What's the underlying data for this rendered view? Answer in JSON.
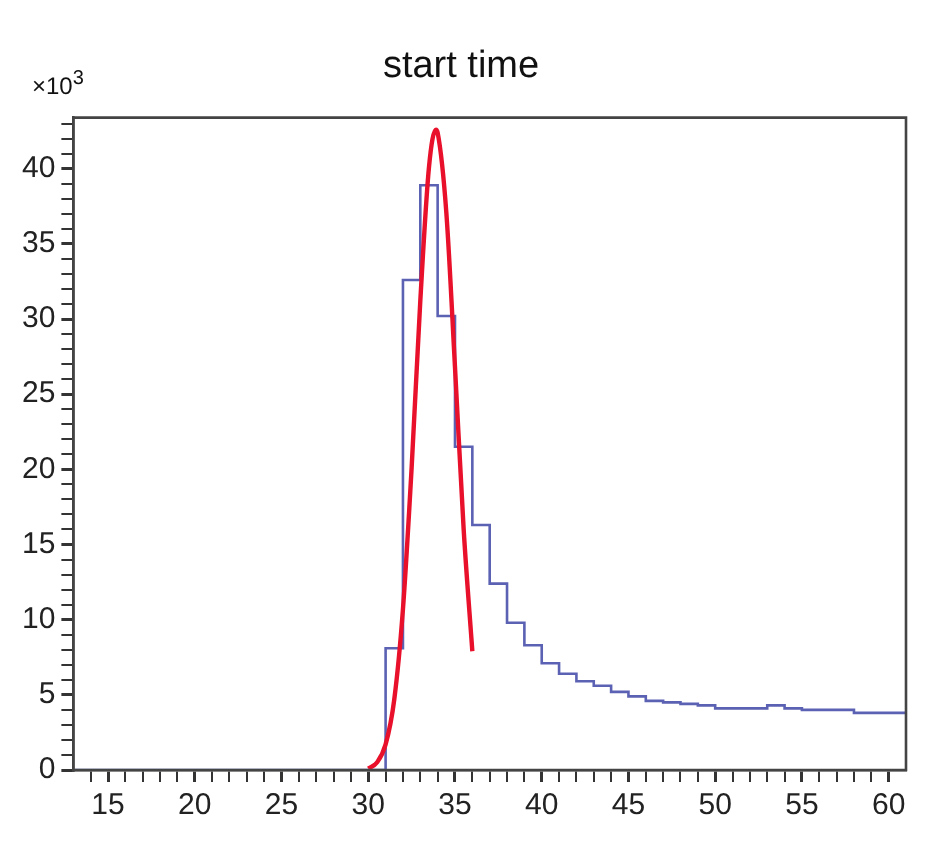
{
  "chart_data": {
    "type": "histogram",
    "title": "start time",
    "annotations": [
      "×10$^{3}$"
    ],
    "bins": [
      13,
      14,
      15,
      16,
      17,
      18,
      19,
      20,
      21,
      22,
      23,
      24,
      25,
      26,
      27,
      28,
      29,
      30,
      31,
      32,
      33,
      34,
      35,
      36,
      37,
      38,
      39,
      40,
      41,
      42,
      43,
      44,
      45,
      46,
      47,
      48,
      49,
      50,
      51,
      52,
      53,
      54,
      55,
      56,
      57,
      58,
      59,
      60,
      61
    ],
    "values": [
      0,
      0,
      0,
      0,
      0,
      0,
      0,
      0,
      0,
      0,
      0,
      0,
      0,
      0,
      0,
      0,
      0,
      0,
      8.1,
      32.6,
      38.9,
      30.2,
      21.5,
      16.3,
      12.4,
      9.8,
      8.3,
      7.1,
      6.4,
      5.9,
      5.6,
      5.2,
      4.9,
      4.6,
      4.5,
      4.4,
      4.3,
      4.1,
      4.1,
      4.1,
      4.3,
      4.1,
      4.0,
      4.0,
      4.0,
      3.8,
      3.8,
      3.8
    ],
    "color": "#5b61b3",
    "series": [
      {
        "type": "line",
        "color": "#e8102a",
        "x": [
          30,
          30.5,
          31,
          31.5,
          32,
          32.5,
          33,
          33.5,
          33.9,
          34,
          34.5,
          35,
          35.5,
          36
        ],
        "values": [
          0.1,
          0.5,
          1.7,
          4.7,
          10.7,
          20.1,
          31.2,
          40.1,
          42.6,
          42.4,
          37.1,
          26.8,
          16.0,
          7.9
        ]
      }
    ],
    "xlim": [
      13,
      61
    ],
    "ylim": [
      0,
      43.4
    ],
    "xticks": [
      {
        "value": 14,
        "label": null
      },
      15,
      {
        "value": 16,
        "label": null
      },
      {
        "value": 17,
        "label": null
      },
      {
        "value": 18,
        "label": null
      },
      {
        "value": 19,
        "label": null
      },
      20,
      {
        "value": 21,
        "label": null
      },
      {
        "value": 22,
        "label": null
      },
      {
        "value": 23,
        "label": null
      },
      {
        "value": 24,
        "label": null
      },
      25,
      {
        "value": 26,
        "label": null
      },
      {
        "value": 27,
        "label": null
      },
      {
        "value": 28,
        "label": null
      },
      {
        "value": 29,
        "label": null
      },
      30,
      {
        "value": 31,
        "label": null
      },
      {
        "value": 32,
        "label": null
      },
      {
        "value": 33,
        "label": null
      },
      {
        "value": 34,
        "label": null
      },
      35,
      {
        "value": 36,
        "label": null
      },
      {
        "value": 37,
        "label": null
      },
      {
        "value": 38,
        "label": null
      },
      {
        "value": 39,
        "label": null
      },
      40,
      {
        "value": 41,
        "label": null
      },
      {
        "value": 42,
        "label": null
      },
      {
        "value": 43,
        "label": null
      },
      {
        "value": 44,
        "label": null
      },
      45,
      {
        "value": 46,
        "label": null
      },
      {
        "value": 47,
        "label": null
      },
      {
        "value": 48,
        "label": null
      },
      {
        "value": 49,
        "label": null
      },
      50,
      {
        "value": 51,
        "label": null
      },
      {
        "value": 52,
        "label": null
      },
      {
        "value": 53,
        "label": null
      },
      {
        "value": 54,
        "label": null
      },
      55,
      {
        "value": 56,
        "label": null
      },
      {
        "value": 57,
        "label": null
      },
      {
        "value": 58,
        "label": null
      },
      {
        "value": 59,
        "label": null
      },
      60
    ],
    "yticks": [
      0,
      {
        "value": 1,
        "label": null
      },
      {
        "value": 2,
        "label": null
      },
      {
        "value": 3,
        "label": null
      },
      {
        "value": 4,
        "label": null
      },
      5,
      {
        "value": 6,
        "label": null
      },
      {
        "value": 7,
        "label": null
      },
      {
        "value": 8,
        "label": null
      },
      {
        "value": 9,
        "label": null
      },
      10,
      {
        "value": 11,
        "label": null
      },
      {
        "value": 12,
        "label": null
      },
      {
        "value": 13,
        "label": null
      },
      {
        "value": 14,
        "label": null
      },
      15,
      {
        "value": 16,
        "label": null
      },
      {
        "value": 17,
        "label": null
      },
      {
        "value": 18,
        "label": null
      },
      {
        "value": 19,
        "label": null
      },
      20,
      {
        "value": 21,
        "label": null
      },
      {
        "value": 22,
        "label": null
      },
      {
        "value": 23,
        "label": null
      },
      {
        "value": 24,
        "label": null
      },
      25,
      {
        "value": 26,
        "label": null
      },
      {
        "value": 27,
        "label": null
      },
      {
        "value": 28,
        "label": null
      },
      {
        "value": 29,
        "label": null
      },
      30,
      {
        "value": 31,
        "label": null
      },
      {
        "value": 32,
        "label": null
      },
      {
        "value": 33,
        "label": null
      },
      {
        "value": 34,
        "label": null
      },
      35,
      {
        "value": 36,
        "label": null
      },
      {
        "value": 37,
        "label": null
      },
      {
        "value": 38,
        "label": null
      },
      {
        "value": 39,
        "label": null
      },
      40,
      {
        "value": 41,
        "label": null
      },
      {
        "value": 42,
        "label": null
      },
      {
        "value": 43,
        "label": null
      }
    ],
    "grid": false,
    "legend": false
  }
}
